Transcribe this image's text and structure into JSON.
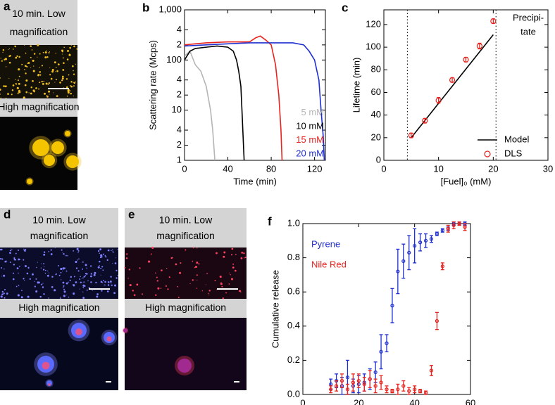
{
  "image_panels": [
    {
      "label": "a",
      "top_caption": [
        "10 min. Low",
        "magnification"
      ],
      "bottom_caption": "High magnification"
    },
    {
      "label": "d",
      "top_caption": [
        "10 min. Low",
        "magnification"
      ],
      "bottom_caption": "High magnification"
    },
    {
      "label": "e",
      "top_caption": [
        "10 min. Low",
        "magnification"
      ],
      "bottom_caption": "High magnification"
    }
  ],
  "chart_data": [
    {
      "panel_label": "b",
      "type": "line",
      "x_label": "Time (min)",
      "y_label": "Scattering rate (Mcps)",
      "xlim": [
        0,
        130
      ],
      "xticks": [
        0,
        40,
        80,
        120
      ],
      "ylim": [
        1,
        1000
      ],
      "log_y": true,
      "yticks": [
        1,
        2,
        4,
        10,
        {
          "value": 20,
          "label": "2"
        },
        {
          "value": 40,
          "label": "4"
        },
        100,
        {
          "value": 200,
          "label": "2"
        },
        {
          "value": 400,
          "label": "4"
        },
        {
          "value": 1000,
          "label": "1,000"
        }
      ],
      "legend": "lower right",
      "legend_style": "text",
      "series": [
        {
          "name": "5 mM",
          "color": "#b5b5b5",
          "x": [
            0,
            5,
            10,
            15,
            20,
            24,
            26,
            27,
            28
          ],
          "values": [
            120,
            150,
            80,
            60,
            30,
            10,
            4,
            2,
            1
          ]
        },
        {
          "name": "10 mM",
          "color": "#000000",
          "x": [
            0,
            5,
            10,
            20,
            30,
            40,
            45,
            48,
            50,
            52,
            53,
            55
          ],
          "values": [
            100,
            150,
            170,
            180,
            190,
            180,
            150,
            100,
            60,
            30,
            10,
            1
          ]
        },
        {
          "name": "15 mM",
          "color": "#e8221d",
          "x": [
            0,
            10,
            20,
            40,
            60,
            66,
            70,
            75,
            80,
            84,
            87,
            89,
            90
          ],
          "values": [
            200,
            210,
            220,
            230,
            230,
            280,
            300,
            250,
            200,
            80,
            20,
            4,
            1
          ]
        },
        {
          "name": "20 mM",
          "color": "#2030d0",
          "x": [
            0,
            20,
            40,
            60,
            80,
            100,
            110,
            115,
            120,
            124,
            126,
            128,
            129
          ],
          "values": [
            190,
            200,
            210,
            220,
            220,
            220,
            200,
            150,
            100,
            40,
            10,
            3,
            1
          ]
        }
      ]
    },
    {
      "panel_label": "c",
      "type": "scatter",
      "x_label": "[Fuel]₀ (mM)",
      "y_label": "Lifetime (min)",
      "xlim": [
        0,
        30
      ],
      "xticks": [
        0,
        10,
        20,
        30
      ],
      "ylim": [
        0,
        133
      ],
      "yticks": [
        0,
        20,
        40,
        60,
        80,
        100,
        120
      ],
      "vlines": [
        4.3,
        20.5
      ],
      "annotation": [
        "Precipi-",
        "tate"
      ],
      "legend": "lower right",
      "legend_style": "swatch",
      "series": [
        {
          "name": "Model",
          "color": "#000000",
          "style": "line",
          "x": [
            5,
            20
          ],
          "values": [
            20,
            111
          ]
        },
        {
          "name": "DLS",
          "color": "#e8221d",
          "style": "marker",
          "x": [
            5,
            7.5,
            10,
            12.5,
            15,
            17.5,
            20
          ],
          "values": [
            22,
            35,
            53,
            71,
            89,
            101,
            123
          ],
          "errors": [
            2,
            2,
            2.5,
            2,
            2,
            2.5,
            2
          ]
        }
      ]
    },
    {
      "panel_label": "f",
      "type": "scatter",
      "x_label": "Time (min)",
      "y_label": "Cumulative release",
      "xlim": [
        0,
        60
      ],
      "xticks": [
        0,
        20,
        40,
        60
      ],
      "ylim": [
        0,
        1
      ],
      "yticks": [
        {
          "value": 0,
          "label": "0.0"
        },
        0.2,
        0.4,
        0.6,
        0.8,
        {
          "value": 1,
          "label": "1.0"
        }
      ],
      "legend": "upper left",
      "legend_style": "text",
      "series": [
        {
          "name": "Pyrene",
          "color": "#2030d0",
          "style": "marker",
          "x": [
            10,
            12,
            14,
            16,
            18,
            20,
            22,
            24,
            26,
            28,
            30,
            32,
            34,
            36,
            38,
            40,
            42,
            44,
            46,
            48,
            50,
            52,
            54,
            56,
            58
          ],
          "values": [
            0.06,
            0.08,
            0.05,
            0.1,
            0.05,
            0.06,
            0.07,
            0.09,
            0.13,
            0.25,
            0.3,
            0.52,
            0.72,
            0.78,
            0.83,
            0.87,
            0.89,
            0.9,
            0.91,
            0.94,
            0.96,
            0.97,
            1.0,
            1.0,
            1.0
          ],
          "errors": [
            0.03,
            0.04,
            0.05,
            0.1,
            0.04,
            0.05,
            0.05,
            0.06,
            0.06,
            0.1,
            0.05,
            0.1,
            0.13,
            0.1,
            0.1,
            0.1,
            0.05,
            0.04,
            0.02,
            0.01,
            0.01,
            0.01,
            0.01,
            0.01,
            0.01
          ]
        },
        {
          "name": "Nile Red",
          "color": "#e8221d",
          "style": "marker",
          "x": [
            10,
            12,
            14,
            16,
            18,
            20,
            22,
            24,
            26,
            28,
            30,
            32,
            34,
            36,
            38,
            40,
            42,
            44,
            46,
            48,
            50,
            52,
            54,
            56,
            58
          ],
          "values": [
            0.03,
            0.05,
            0.08,
            0.03,
            0.07,
            0.08,
            0.06,
            0.09,
            0.05,
            0.07,
            0.03,
            0.02,
            0.03,
            0.05,
            0.02,
            0.03,
            0.02,
            0.01,
            0.14,
            0.43,
            0.75,
            0.97,
            0.99,
            1.0,
            0.98
          ],
          "errors": [
            0.02,
            0.03,
            0.04,
            0.03,
            0.05,
            0.04,
            0.04,
            0.05,
            0.04,
            0.04,
            0.02,
            0.01,
            0.03,
            0.03,
            0.02,
            0.02,
            0.01,
            0.01,
            0.03,
            0.05,
            0.02,
            0.02,
            0.02,
            0.01,
            0.02
          ]
        }
      ]
    }
  ]
}
